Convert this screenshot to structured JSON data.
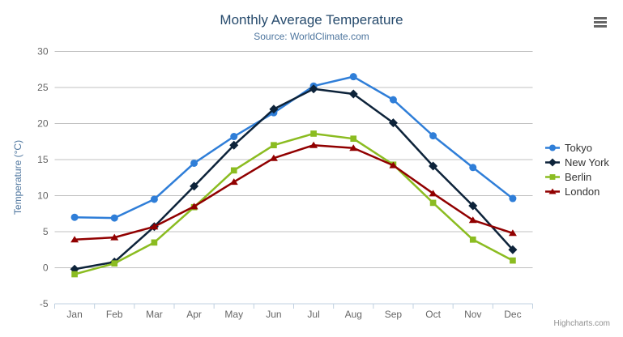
{
  "header": {
    "title": "Monthly Average Temperature",
    "subtitle": "Source: WorldClimate.com"
  },
  "export_menu": {
    "icon": "hamburger-icon"
  },
  "chart_data": {
    "type": "line",
    "categories": [
      "Jan",
      "Feb",
      "Mar",
      "Apr",
      "May",
      "Jun",
      "Jul",
      "Aug",
      "Sep",
      "Oct",
      "Nov",
      "Dec"
    ],
    "series": [
      {
        "name": "Tokyo",
        "color": "#2f7ed8",
        "marker": "circle",
        "values": [
          7.0,
          6.9,
          9.5,
          14.5,
          18.2,
          21.5,
          25.2,
          26.5,
          23.3,
          18.3,
          13.9,
          9.6
        ]
      },
      {
        "name": "New York",
        "color": "#0d233a",
        "marker": "diamond",
        "values": [
          -0.2,
          0.8,
          5.7,
          11.3,
          17.0,
          22.0,
          24.8,
          24.1,
          20.1,
          14.1,
          8.6,
          2.5
        ]
      },
      {
        "name": "Berlin",
        "color": "#8bbc21",
        "marker": "square",
        "values": [
          -0.9,
          0.6,
          3.5,
          8.4,
          13.5,
          17.0,
          18.6,
          17.9,
          14.3,
          9.0,
          3.9,
          1.0
        ]
      },
      {
        "name": "London",
        "color": "#910000",
        "marker": "triangle",
        "values": [
          3.9,
          4.2,
          5.7,
          8.5,
          11.9,
          15.2,
          17.0,
          16.6,
          14.2,
          10.3,
          6.6,
          4.8
        ]
      }
    ],
    "title": "Monthly Average Temperature",
    "subtitle": "Source: WorldClimate.com",
    "xlabel": "",
    "ylabel": "Temperature (°C)",
    "ylim": [
      -5,
      30
    ],
    "yticks": [
      -5,
      0,
      5,
      10,
      15,
      20,
      25,
      30
    ],
    "grid": true,
    "legend_position": "right"
  },
  "style": {
    "title_color": "#274b6d",
    "subtitle_color": "#4d759e",
    "axis_label_color": "#666666",
    "axis_title_color": "#4d759e",
    "gridline_color": "#c0c0c0",
    "axis_line_color": "#c0d0e0",
    "legend_text_color": "#333333",
    "credit_color": "#909090"
  },
  "credit": "Highcharts.com"
}
